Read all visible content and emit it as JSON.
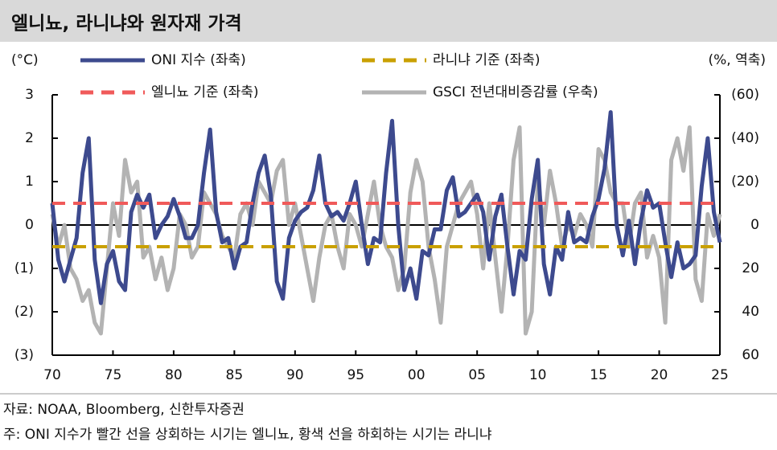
{
  "chart_data": {
    "type": "line",
    "title": "엘니뇨, 라니냐와 원자재 가격",
    "y_label": "(°C)",
    "y2_label": "(%, 역축)",
    "source": "자료: NOAA, Bloomberg, 신한투자증권",
    "note": "주: ONI 지수가 빨간 선을 상회하는 시기는 엘니뇨, 황색 선을 하회하는 시기는 라니냐",
    "x": [
      1970,
      1970.5,
      1971,
      1971.5,
      1972,
      1972.5,
      1973,
      1973.5,
      1974,
      1974.5,
      1975,
      1975.5,
      1976,
      1976.5,
      1977,
      1977.5,
      1978,
      1978.5,
      1979,
      1979.5,
      1980,
      1980.5,
      1981,
      1981.5,
      1982,
      1982.5,
      1983,
      1983.5,
      1984,
      1984.5,
      1985,
      1985.5,
      1986,
      1986.5,
      1987,
      1987.5,
      1988,
      1988.5,
      1989,
      1989.5,
      1990,
      1990.5,
      1991,
      1991.5,
      1992,
      1992.5,
      1993,
      1993.5,
      1994,
      1994.5,
      1995,
      1995.5,
      1996,
      1996.5,
      1997,
      1997.5,
      1998,
      1998.5,
      1999,
      1999.5,
      2000,
      2000.5,
      2001,
      2001.5,
      2002,
      2002.5,
      2003,
      2003.5,
      2004,
      2004.5,
      2005,
      2005.5,
      2006,
      2006.5,
      2007,
      2007.5,
      2008,
      2008.5,
      2009,
      2009.5,
      2010,
      2010.5,
      2011,
      2011.5,
      2012,
      2012.5,
      2013,
      2013.5,
      2014,
      2014.5,
      2015,
      2015.5,
      2016,
      2016.5,
      2017,
      2017.5,
      2018,
      2018.5,
      2019,
      2019.5,
      2020,
      2020.5,
      2021,
      2021.5,
      2022,
      2022.5,
      2023,
      2023.5,
      2024,
      2024.5,
      2025
    ],
    "series": [
      {
        "name": "ONI 지수 (좌축)",
        "color": "#3d4a8e",
        "style": "solid",
        "values": [
          0.5,
          -0.8,
          -1.3,
          -0.8,
          -0.3,
          1.2,
          2.0,
          -0.8,
          -1.8,
          -0.9,
          -0.6,
          -1.3,
          -1.5,
          0.3,
          0.7,
          0.4,
          0.7,
          -0.3,
          0.0,
          0.2,
          0.6,
          0.2,
          -0.3,
          -0.3,
          0.0,
          1.2,
          2.2,
          0.3,
          -0.4,
          -0.3,
          -1.0,
          -0.5,
          -0.4,
          0.5,
          1.2,
          1.6,
          0.7,
          -1.3,
          -1.7,
          -0.3,
          0.1,
          0.3,
          0.4,
          0.8,
          1.6,
          0.5,
          0.2,
          0.3,
          0.1,
          0.5,
          1.0,
          0.0,
          -0.9,
          -0.3,
          -0.4,
          1.2,
          2.4,
          0.0,
          -1.5,
          -1.0,
          -1.7,
          -0.6,
          -0.7,
          -0.1,
          -0.1,
          0.8,
          1.1,
          0.2,
          0.3,
          0.5,
          0.7,
          0.3,
          -0.8,
          0.2,
          0.7,
          -0.5,
          -1.6,
          -0.6,
          -0.8,
          0.6,
          1.5,
          -0.9,
          -1.6,
          -0.5,
          -0.8,
          0.3,
          -0.4,
          -0.3,
          -0.4,
          0.2,
          0.6,
          1.3,
          2.6,
          0.0,
          -0.7,
          0.1,
          -0.9,
          0.1,
          0.8,
          0.4,
          0.5,
          -0.4,
          -1.2,
          -0.4,
          -1.0,
          -0.9,
          -0.7,
          0.9,
          2.0,
          0.3,
          -0.4
        ]
      },
      {
        "name": "라니냐 기준 (좌축)",
        "color": "#c9a000",
        "style": "dashed",
        "value": -0.5
      },
      {
        "name": "엘니뇨 기준 (좌축)",
        "color": "#f05a5a",
        "style": "dashed",
        "value": 0.5
      },
      {
        "name": "GSCI 전년대비증감률 (우축)",
        "color": "#b3b3b3",
        "style": "solid",
        "axis": "y2",
        "values": [
          -5,
          10,
          0,
          20,
          25,
          35,
          30,
          45,
          50,
          20,
          -10,
          5,
          -30,
          -15,
          -20,
          15,
          10,
          25,
          15,
          30,
          20,
          -5,
          0,
          15,
          10,
          -15,
          -10,
          -5,
          5,
          10,
          15,
          -5,
          -10,
          0,
          -20,
          -15,
          -10,
          -25,
          -30,
          0,
          -10,
          5,
          20,
          35,
          15,
          0,
          -5,
          10,
          20,
          -5,
          0,
          10,
          -5,
          -20,
          0,
          10,
          15,
          30,
          20,
          -15,
          -30,
          -20,
          10,
          25,
          45,
          10,
          0,
          -10,
          -15,
          -20,
          -5,
          20,
          -10,
          15,
          40,
          10,
          -30,
          -45,
          50,
          40,
          -20,
          0,
          -25,
          -10,
          10,
          0,
          5,
          -5,
          0,
          10,
          -35,
          -30,
          -15,
          -10,
          -10,
          10,
          -10,
          -15,
          15,
          5,
          15,
          45,
          -30,
          -40,
          -25,
          -45,
          25,
          35,
          -5,
          5,
          -5
        ]
      }
    ],
    "xlim": [
      1970,
      2025
    ],
    "xticks": [
      {
        "value": 1970,
        "label": "70"
      },
      {
        "value": 1975,
        "label": "75"
      },
      {
        "value": 1980,
        "label": "80"
      },
      {
        "value": 1985,
        "label": "85"
      },
      {
        "value": 1990,
        "label": "90"
      },
      {
        "value": 1995,
        "label": "95"
      },
      {
        "value": 2000,
        "label": "00"
      },
      {
        "value": 2005,
        "label": "05"
      },
      {
        "value": 2010,
        "label": "10"
      },
      {
        "value": 2015,
        "label": "15"
      },
      {
        "value": 2020,
        "label": "20"
      },
      {
        "value": 2025,
        "label": "25"
      }
    ],
    "ylim": [
      -3,
      3
    ],
    "yticks": [
      {
        "value": -3,
        "label": "(3)"
      },
      {
        "value": -2,
        "label": "(2)"
      },
      {
        "value": -1,
        "label": "(1)"
      },
      0,
      1,
      2,
      3
    ],
    "y2lim": [
      60,
      -60
    ],
    "y2ticks": [
      60,
      40,
      20,
      0,
      {
        "value": -20,
        "label": "(20)"
      },
      {
        "value": -40,
        "label": "(40)"
      },
      {
        "value": -60,
        "label": "(60)"
      }
    ]
  }
}
